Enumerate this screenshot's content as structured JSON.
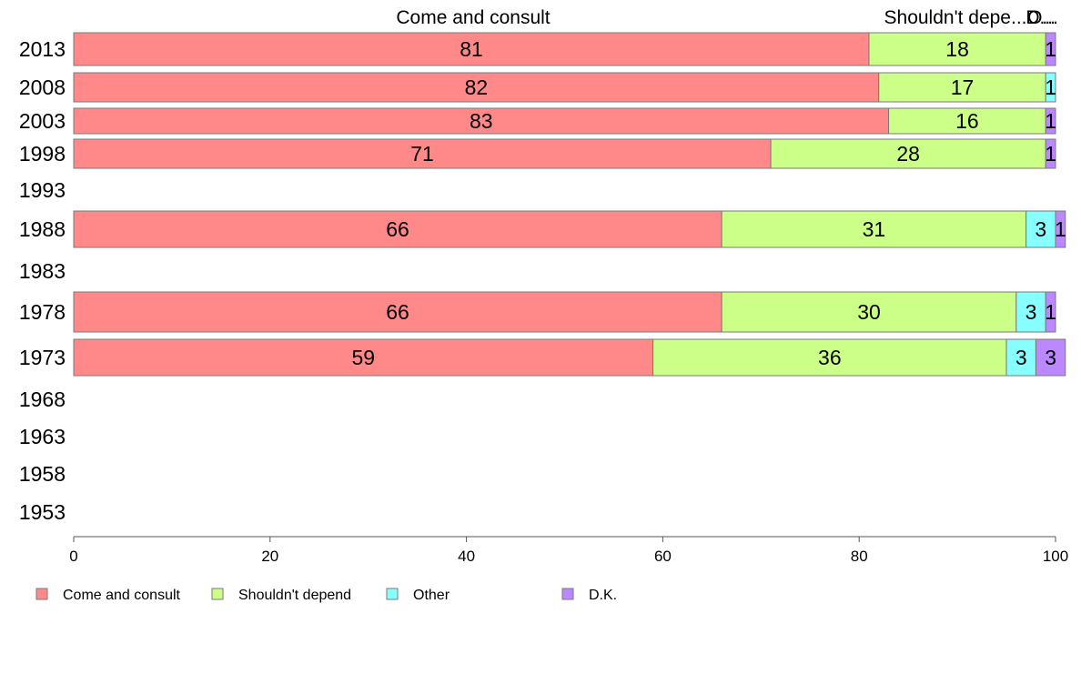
{
  "chart_data": {
    "type": "bar",
    "orientation": "horizontal",
    "stacked": true,
    "categories": [
      "2013",
      "2008",
      "2003",
      "1998",
      "1993",
      "1988",
      "1983",
      "1978",
      "1973",
      "1968",
      "1963",
      "1958",
      "1953"
    ],
    "series": [
      {
        "name": "Come and consult",
        "color": "#FF8888",
        "values": [
          81,
          82,
          83,
          71,
          null,
          66,
          null,
          66,
          59,
          null,
          null,
          null,
          null
        ]
      },
      {
        "name": "Shouldn't depend",
        "color": "#CCFF88",
        "values": [
          18,
          17,
          16,
          28,
          null,
          31,
          null,
          30,
          36,
          null,
          null,
          null,
          null
        ]
      },
      {
        "name": "Other",
        "color": "#88FFFF",
        "values": [
          0,
          1,
          0,
          0,
          null,
          3,
          null,
          3,
          3,
          null,
          null,
          null,
          null
        ]
      },
      {
        "name": "D.K.",
        "color": "#BB88FF",
        "values": [
          1,
          0,
          1,
          1,
          null,
          1,
          null,
          1,
          3,
          null,
          null,
          null,
          null
        ]
      }
    ],
    "bar_labels": [
      [
        "81",
        "18",
        "",
        "1"
      ],
      [
        "82",
        "17",
        "1",
        ""
      ],
      [
        "83",
        "16",
        "",
        "1"
      ],
      [
        "71",
        "28",
        "",
        "1"
      ],
      [],
      [
        "66",
        "31",
        "3",
        "1"
      ],
      [],
      [
        "66",
        "30",
        "3",
        "1"
      ],
      [
        "59",
        "36",
        "3",
        "3"
      ],
      [],
      [],
      [],
      []
    ],
    "top_labels": [
      "Come and consult",
      "Shouldn't depe...",
      "O...",
      "D..."
    ],
    "xlim": [
      0,
      100
    ],
    "xticks": [
      "0",
      "20",
      "40",
      "60",
      "80",
      "100"
    ],
    "legend": [
      "Come and consult",
      "Shouldn't depend",
      "Other",
      "D.K."
    ],
    "legend_position": "bottom",
    "grid": false
  }
}
